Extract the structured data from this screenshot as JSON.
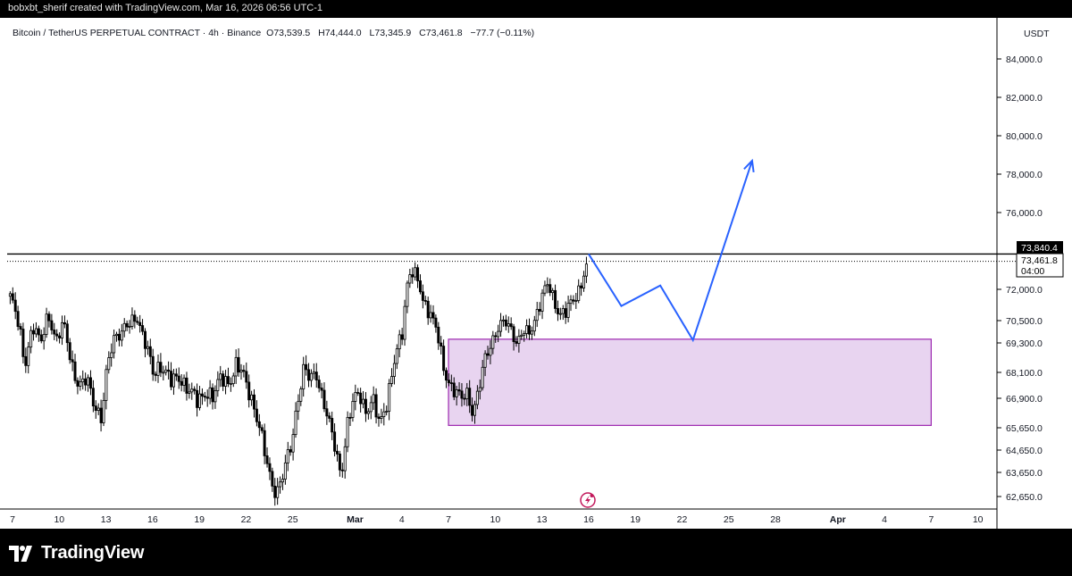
{
  "header_caption": "bobxbt_sherif created with TradingView.com, Mar 16, 2026 06:56 UTC-1",
  "brand": {
    "name": "TradingView",
    "logo_icon": "tradingview-logo-icon"
  },
  "colors": {
    "up": "#000000",
    "down": "#000000",
    "projection": "#2962ff",
    "zone_fill": "#e8d4f0",
    "zone_border": "#9c27b0",
    "resistance": "#000000",
    "lightning": "#c2185b"
  },
  "chart_data": {
    "type": "candlestick",
    "symbol_line": {
      "title": "Bitcoin / TetherUS PERPETUAL CONTRACT · 4h · Binance",
      "open": "O73,539.5",
      "high": "H74,444.0",
      "low": "L73,345.9",
      "close": "C73,461.8",
      "change": "−77.7 (−0.11%)"
    },
    "currency": "USDT",
    "y_ticks": [
      "84,000.0",
      "82,000.0",
      "80,000.0",
      "78,000.0",
      "76,000.0",
      "72,000.0",
      "70,500.0",
      "69,300.0",
      "68,100.0",
      "66,900.0",
      "65,650.0",
      "64,650.0",
      "63,650.0",
      "62,650.0"
    ],
    "y_tick_values": [
      84000,
      82000,
      80000,
      78000,
      76000,
      72000,
      70500,
      69300,
      68100,
      66900,
      65650,
      64650,
      63650,
      62650
    ],
    "x_ticks": [
      "7",
      "10",
      "13",
      "16",
      "19",
      "22",
      "25",
      "Mar",
      "4",
      "7",
      "10",
      "13",
      "16",
      "19",
      "22",
      "25",
      "28",
      "Apr",
      "4",
      "7",
      "10"
    ],
    "x_tick_days": [
      7,
      10,
      13,
      16,
      19,
      22,
      25,
      29,
      32,
      35,
      38,
      41,
      44,
      47,
      50,
      53,
      56,
      60,
      63,
      66,
      69
    ],
    "time_unit": "day index (Feb 1 = 1)",
    "price_labels": {
      "resistance": "73,840.4",
      "last": "73,461.8",
      "countdown": "04:00"
    },
    "resistance_level": 73840.4,
    "last_price": 73461.8,
    "demand_zone": {
      "from_day": 35,
      "to_day": 66,
      "low": 65750,
      "high": 69500
    },
    "projection_path": [
      {
        "day": 44,
        "price": 73840
      },
      {
        "day": 46.1,
        "price": 71200
      },
      {
        "day": 48.6,
        "price": 72200
      },
      {
        "day": 50.7,
        "price": 69450
      },
      {
        "day": 54.5,
        "price": 78700
      }
    ],
    "price_path": [
      {
        "day": 6.8,
        "price": 71800
      },
      {
        "day": 7.3,
        "price": 70500
      },
      {
        "day": 7.8,
        "price": 68500
      },
      {
        "day": 8.3,
        "price": 70200
      },
      {
        "day": 8.8,
        "price": 69200
      },
      {
        "day": 9.3,
        "price": 71000
      },
      {
        "day": 9.8,
        "price": 69300
      },
      {
        "day": 10.3,
        "price": 70300
      },
      {
        "day": 10.8,
        "price": 68500
      },
      {
        "day": 11.3,
        "price": 67300
      },
      {
        "day": 11.8,
        "price": 67800
      },
      {
        "day": 12.3,
        "price": 66700
      },
      {
        "day": 12.7,
        "price": 65900
      },
      {
        "day": 13.1,
        "price": 68300
      },
      {
        "day": 13.5,
        "price": 69700
      },
      {
        "day": 14.0,
        "price": 69900
      },
      {
        "day": 14.5,
        "price": 70200
      },
      {
        "day": 15.0,
        "price": 70800
      },
      {
        "day": 15.5,
        "price": 69400
      },
      {
        "day": 16.0,
        "price": 68000
      },
      {
        "day": 16.6,
        "price": 68500
      },
      {
        "day": 17.2,
        "price": 67600
      },
      {
        "day": 17.8,
        "price": 67900
      },
      {
        "day": 18.4,
        "price": 67200
      },
      {
        "day": 18.9,
        "price": 66700
      },
      {
        "day": 19.4,
        "price": 67300
      },
      {
        "day": 19.9,
        "price": 66900
      },
      {
        "day": 20.4,
        "price": 67900
      },
      {
        "day": 20.9,
        "price": 67700
      },
      {
        "day": 21.4,
        "price": 68300
      },
      {
        "day": 21.9,
        "price": 67900
      },
      {
        "day": 22.3,
        "price": 67100
      },
      {
        "day": 22.7,
        "price": 66000
      },
      {
        "day": 23.2,
        "price": 64500
      },
      {
        "day": 23.6,
        "price": 63400
      },
      {
        "day": 24.0,
        "price": 62800
      },
      {
        "day": 24.4,
        "price": 63500
      },
      {
        "day": 24.9,
        "price": 65000
      },
      {
        "day": 25.3,
        "price": 66800
      },
      {
        "day": 25.7,
        "price": 68100
      },
      {
        "day": 26.1,
        "price": 67800
      },
      {
        "day": 26.5,
        "price": 68200
      },
      {
        "day": 26.9,
        "price": 66900
      },
      {
        "day": 27.3,
        "price": 65800
      },
      {
        "day": 27.7,
        "price": 64900
      },
      {
        "day": 28.1,
        "price": 63600
      },
      {
        "day": 28.5,
        "price": 65600
      },
      {
        "day": 28.9,
        "price": 66800
      },
      {
        "day": 29.3,
        "price": 67300
      },
      {
        "day": 29.7,
        "price": 66300
      },
      {
        "day": 30.1,
        "price": 66700
      },
      {
        "day": 30.6,
        "price": 65900
      },
      {
        "day": 31.1,
        "price": 67000
      },
      {
        "day": 31.6,
        "price": 68700
      },
      {
        "day": 32.0,
        "price": 69700
      },
      {
        "day": 32.3,
        "price": 72200
      },
      {
        "day": 32.6,
        "price": 73100
      },
      {
        "day": 33.0,
        "price": 72400
      },
      {
        "day": 33.4,
        "price": 71300
      },
      {
        "day": 33.8,
        "price": 71100
      },
      {
        "day": 34.2,
        "price": 70100
      },
      {
        "day": 34.6,
        "price": 68300
      },
      {
        "day": 35.0,
        "price": 67700
      },
      {
        "day": 35.4,
        "price": 67400
      },
      {
        "day": 35.8,
        "price": 66800
      },
      {
        "day": 36.2,
        "price": 67000
      },
      {
        "day": 36.6,
        "price": 66400
      },
      {
        "day": 37.0,
        "price": 67600
      },
      {
        "day": 37.4,
        "price": 68600
      },
      {
        "day": 37.8,
        "price": 69400
      },
      {
        "day": 38.2,
        "price": 70300
      },
      {
        "day": 38.6,
        "price": 70400
      },
      {
        "day": 39.0,
        "price": 69900
      },
      {
        "day": 39.4,
        "price": 69400
      },
      {
        "day": 39.8,
        "price": 70100
      },
      {
        "day": 40.2,
        "price": 69600
      },
      {
        "day": 40.6,
        "price": 70600
      },
      {
        "day": 41.0,
        "price": 71900
      },
      {
        "day": 41.4,
        "price": 72300
      },
      {
        "day": 41.8,
        "price": 71100
      },
      {
        "day": 42.2,
        "price": 70900
      },
      {
        "day": 42.6,
        "price": 71200
      },
      {
        "day": 43.0,
        "price": 71300
      },
      {
        "day": 43.4,
        "price": 71800
      },
      {
        "day": 43.8,
        "price": 73400
      },
      {
        "day": 44.0,
        "price": 73460
      }
    ],
    "grid": false,
    "legend": "none"
  }
}
